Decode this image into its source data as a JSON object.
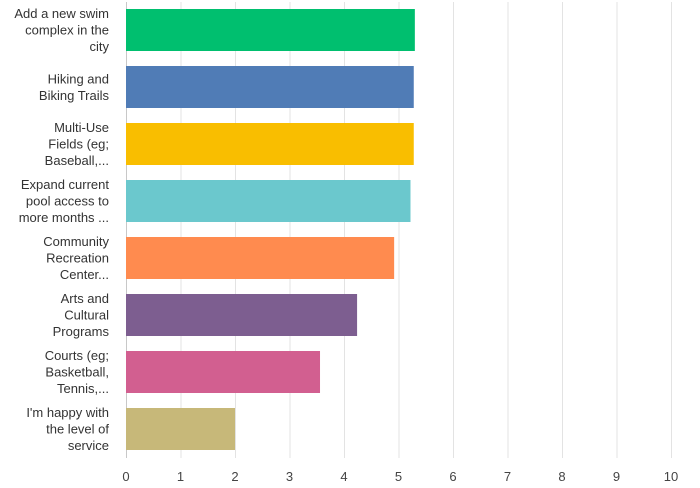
{
  "chart_data": {
    "type": "bar",
    "orientation": "horizontal",
    "title": "",
    "xlabel": "",
    "ylabel": "",
    "xlim": [
      0,
      10
    ],
    "xticks": [
      "0",
      "1",
      "2",
      "3",
      "4",
      "5",
      "6",
      "7",
      "8",
      "9",
      "10"
    ],
    "grid": true,
    "legend": "none",
    "categories": [
      [
        "Add a new swim",
        "complex in the",
        "city"
      ],
      [
        "Hiking and",
        "Biking Trails"
      ],
      [
        "Multi-Use",
        "Fields (eg;",
        "Baseball,..."
      ],
      [
        "Expand current",
        "pool access to",
        "more months ..."
      ],
      [
        "Community",
        "Recreation",
        "Center..."
      ],
      [
        "Arts and",
        "Cultural",
        "Programs"
      ],
      [
        "Courts (eg;",
        "Basketball,",
        "Tennis,..."
      ],
      [
        "I'm happy with",
        "the level of",
        "service"
      ]
    ],
    "values": [
      5.3,
      5.28,
      5.28,
      5.22,
      4.92,
      4.24,
      3.56,
      2.0
    ],
    "colors": [
      "#00bf6f",
      "#507cb6",
      "#f9be00",
      "#6bc8cd",
      "#ff8b4f",
      "#7d5e90",
      "#d25f90",
      "#c7b879"
    ]
  }
}
